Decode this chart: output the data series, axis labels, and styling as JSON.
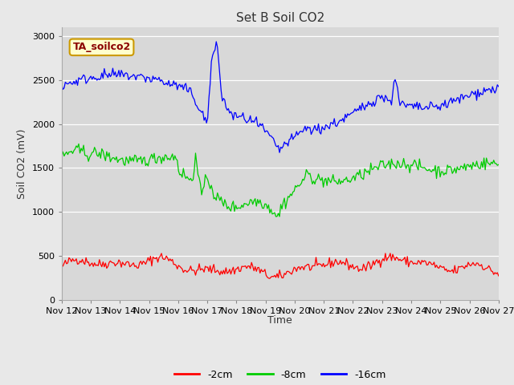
{
  "title": "Set B Soil CO2",
  "ylabel": "Soil CO2 (mV)",
  "xlabel": "Time",
  "annotation": "TA_soilco2",
  "fig_bg": "#e8e8e8",
  "ax_bg": "#d8d8d8",
  "legend_labels": [
    "-2cm",
    "-8cm",
    "-16cm"
  ],
  "legend_colors": [
    "#ff0000",
    "#00cc00",
    "#0000ff"
  ],
  "ylim": [
    0,
    3100
  ],
  "yticks": [
    0,
    500,
    1000,
    1500,
    2000,
    2500,
    3000
  ],
  "xticklabels": [
    "Nov 12",
    "Nov 13",
    "Nov 14",
    "Nov 15",
    "Nov 16",
    "Nov 17",
    "Nov 18",
    "Nov 19",
    "Nov 20",
    "Nov 21",
    "Nov 22",
    "Nov 23",
    "Nov 24",
    "Nov 25",
    "Nov 26",
    "Nov 27"
  ],
  "n_days": 15,
  "n_points": 360,
  "seed": 42
}
